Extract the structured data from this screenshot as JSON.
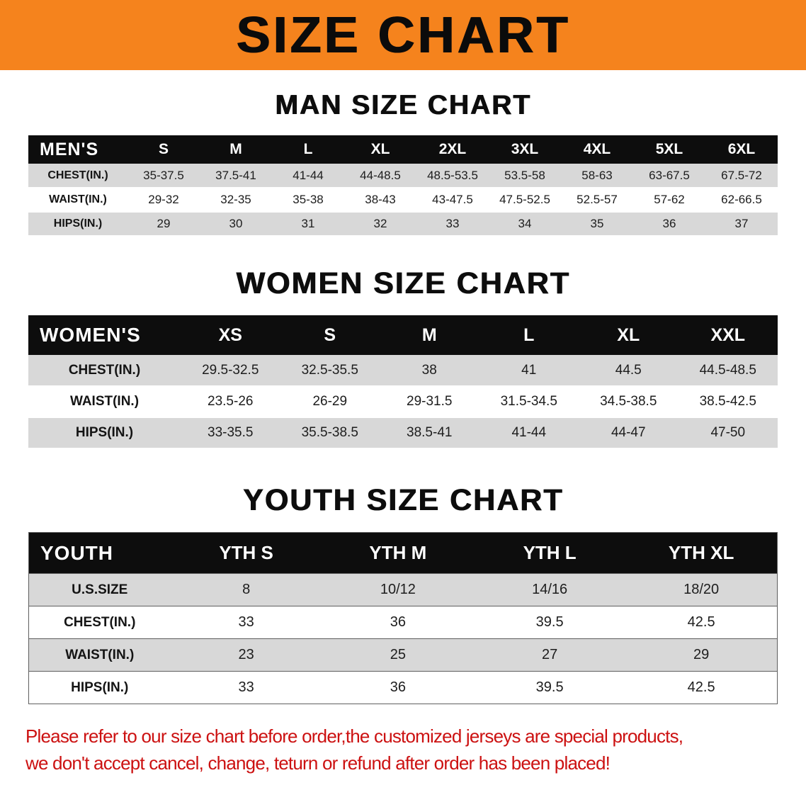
{
  "banner": {
    "title": "SIZE CHART"
  },
  "colors": {
    "banner_bg": "#f5831d",
    "table_header_bg": "#0d0d0d",
    "row_stripe": "#d8d8d8",
    "notice_text": "#cc1111"
  },
  "sections": [
    {
      "heading": "MAN SIZE CHART",
      "table": {
        "header": [
          "MEN'S",
          "S",
          "M",
          "L",
          "XL",
          "2XL",
          "3XL",
          "4XL",
          "5XL",
          "6XL"
        ],
        "rows": [
          [
            "CHEST(IN.)",
            "35-37.5",
            "37.5-41",
            "41-44",
            "44-48.5",
            "48.5-53.5",
            "53.5-58",
            "58-63",
            "63-67.5",
            "67.5-72"
          ],
          [
            "WAIST(IN.)",
            "29-32",
            "32-35",
            "35-38",
            "38-43",
            "43-47.5",
            "47.5-52.5",
            "52.5-57",
            "57-62",
            "62-66.5"
          ],
          [
            "HIPS(IN.)",
            "29",
            "30",
            "31",
            "32",
            "33",
            "34",
            "35",
            "36",
            "37"
          ]
        ]
      }
    },
    {
      "heading": "WOMEN SIZE CHART",
      "table": {
        "header": [
          "WOMEN'S",
          "XS",
          "S",
          "M",
          "L",
          "XL",
          "XXL"
        ],
        "rows": [
          [
            "CHEST(IN.)",
            "29.5-32.5",
            "32.5-35.5",
            "38",
            "41",
            "44.5",
            "44.5-48.5"
          ],
          [
            "WAIST(IN.)",
            "23.5-26",
            "26-29",
            "29-31.5",
            "31.5-34.5",
            "34.5-38.5",
            "38.5-42.5"
          ],
          [
            "HIPS(IN.)",
            "33-35.5",
            "35.5-38.5",
            "38.5-41",
            "41-44",
            "44-47",
            "47-50"
          ]
        ]
      }
    },
    {
      "heading": "YOUTH SIZE CHART",
      "table": {
        "header": [
          "YOUTH",
          "YTH S",
          "YTH M",
          "YTH L",
          "YTH XL"
        ],
        "rows": [
          [
            "U.S.SIZE",
            "8",
            "10/12",
            "14/16",
            "18/20"
          ],
          [
            "CHEST(IN.)",
            "33",
            "36",
            "39.5",
            "42.5"
          ],
          [
            "WAIST(IN.)",
            "23",
            "25",
            "27",
            "29"
          ],
          [
            "HIPS(IN.)",
            "33",
            "36",
            "39.5",
            "42.5"
          ]
        ]
      }
    }
  ],
  "footer": {
    "lines": [
      "Please refer to our size chart before order,the customized jerseys are special products,",
      "we don't accept cancel, change, teturn or refund after order has been placed!"
    ]
  }
}
